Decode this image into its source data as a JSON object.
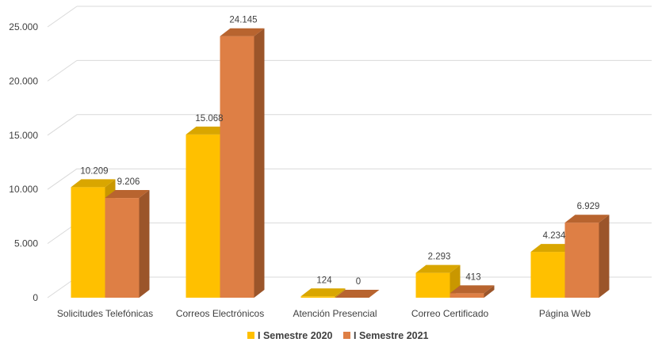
{
  "chart_data": {
    "type": "bar",
    "title": "",
    "xlabel": "",
    "ylabel": "",
    "categories": [
      "Solicitudes Telefónicas",
      "Correos Electrónicos",
      "Atención Presencial",
      "Correo Certificado",
      "Página Web"
    ],
    "series": [
      {
        "name": "I Semestre 2020",
        "values": [
          10209,
          15068,
          124,
          2293,
          4234
        ],
        "labels": [
          "10.209",
          "15.068",
          "124",
          "2.293",
          "4.234"
        ]
      },
      {
        "name": "I Semestre 2021",
        "values": [
          9206,
          24145,
          0,
          413,
          6929
        ],
        "labels": [
          "9.206",
          "24.145",
          "0",
          "413",
          "6.929"
        ]
      }
    ],
    "ylim": [
      0,
      25000
    ],
    "yticks": [
      0,
      5000,
      10000,
      15000,
      20000,
      25000
    ],
    "ytick_labels": [
      "0",
      "5.000",
      "10.000",
      "15.000",
      "20.000",
      "25.000"
    ],
    "grid": true,
    "legend_position": "bottom",
    "style": "3d-column",
    "colors": {
      "series": [
        "#FFC000",
        "#DE7F45"
      ],
      "series_side": [
        "#C99700",
        "#9B552A"
      ],
      "series_top": [
        "#D9A600",
        "#B8642F"
      ],
      "grid": "#D9D9D9",
      "text": "#404040"
    }
  }
}
